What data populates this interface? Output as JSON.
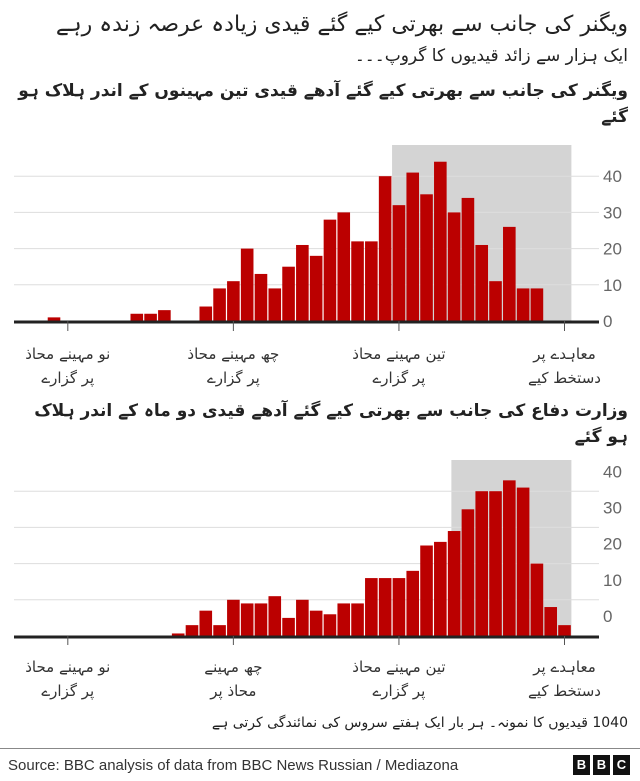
{
  "header": {
    "title": "ویگنر کی جانب سے بھرتی کیے گئے قیدی زیادہ عرصہ زندہ رہے",
    "subtitle": "ایک ہزار سے زائد قیدیوں کا گروپ۔۔۔"
  },
  "colors": {
    "bar": "#bb0000",
    "shade": "#d4d4d4",
    "grid": "#dddddd",
    "axis": "#222222"
  },
  "chart_data": [
    {
      "type": "bar",
      "title": "ویگنر کی جانب سے بھرتی کیے گئے آدھے قیدی تین مہینوں کے اندر ہلاک ہو گئے",
      "x": [
        0,
        1,
        2,
        3,
        4,
        5,
        6,
        7,
        8,
        9,
        10,
        11,
        12,
        13,
        14,
        15,
        16,
        17,
        18,
        19,
        20,
        21,
        22,
        23,
        24,
        25,
        26,
        27,
        28,
        29,
        30,
        31,
        32,
        33,
        34,
        35,
        36,
        37
      ],
      "values": [
        1,
        0,
        0,
        0,
        0,
        0,
        2,
        2,
        3,
        0,
        0,
        4,
        9,
        11,
        20,
        13,
        9,
        15,
        21,
        18,
        28,
        30,
        22,
        22,
        40,
        32,
        41,
        35,
        44,
        30,
        34,
        21,
        11,
        26,
        9,
        9,
        0,
        0
      ],
      "xlim": [
        -2.4,
        40
      ],
      "ylim": [
        0,
        50
      ],
      "shaded_range": [
        25,
        38
      ],
      "yticks": [
        0,
        10,
        20,
        30,
        40
      ],
      "ytick_labels": [
        "0",
        "10",
        "20",
        "30",
        "40"
      ],
      "ytick_label_offset": 0,
      "xticks": [
        1.5,
        13.5,
        25.5,
        37.5
      ],
      "xtick_labels": [
        [
          "نو مہینے محاذ",
          "پر گزارے"
        ],
        [
          "چھ مہینے محاذ",
          "پر گزارے"
        ],
        [
          "تین مہینے محاذ",
          "پر گزارے"
        ],
        [
          "معاہدے پر",
          "دستخط کیے"
        ]
      ],
      "grid": true
    },
    {
      "type": "bar",
      "title": "وزارت دفاع کی جانب سے بھرتی کیے گئے آدھے قیدی دو ماہ کے اندر ہلاک ہو گئے",
      "x": [
        0,
        1,
        2,
        3,
        4,
        5,
        6,
        7,
        8,
        9,
        10,
        11,
        12,
        13,
        14,
        15,
        16,
        17,
        18,
        19,
        20,
        21,
        22,
        23,
        24,
        25,
        26,
        27,
        28,
        29,
        30,
        31,
        32,
        33,
        34,
        35,
        36,
        37
      ],
      "values": [
        0,
        0,
        0,
        0,
        0,
        0,
        0,
        0,
        0,
        0.7,
        3,
        7,
        3,
        10,
        9,
        9,
        11,
        5,
        10,
        7,
        6,
        9,
        9,
        16,
        16,
        16,
        18,
        25,
        26,
        29,
        35,
        40,
        40,
        43,
        41,
        20,
        8,
        3
      ],
      "xlim": [
        -2.4,
        40
      ],
      "ylim": [
        0,
        50
      ],
      "shaded_range": [
        29.3,
        38
      ],
      "yticks": [
        0,
        10,
        20,
        30,
        40
      ],
      "ytick_labels": [
        "0",
        "10",
        "20",
        "30",
        "40"
      ],
      "ytick_label_offset": 5.5,
      "xticks": [
        1.5,
        13.5,
        25.5,
        37.5
      ],
      "xtick_labels": [
        [
          "نو مہینے محاذ",
          "پر گزارے"
        ],
        [
          "چھ مہینے",
          "محاذ پر"
        ],
        [
          "تین مہینے محاذ",
          "پر گزارے"
        ],
        [
          "معاہدے پر",
          "دستخط کیے"
        ]
      ],
      "grid": true
    }
  ],
  "note": "1040 قیدیوں کا نمونہ۔ ہر بار ایک ہفتے سروس کی نمائندگی کرتی ہے",
  "footer": {
    "source": "Source: BBC analysis of data from BBC News Russian / Mediazona",
    "logo_letters": [
      "B",
      "B",
      "C"
    ]
  }
}
